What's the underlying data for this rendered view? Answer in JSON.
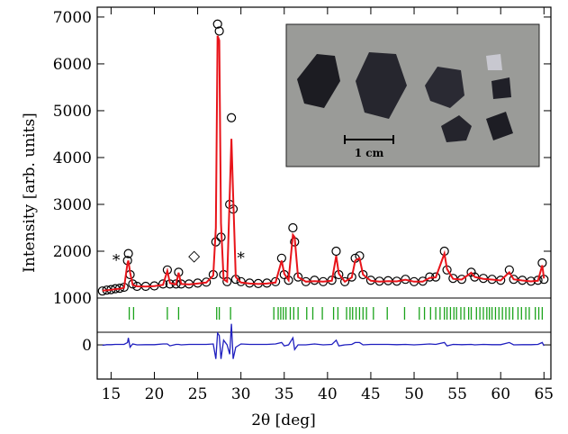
{
  "chart_data": {
    "type": "xrd",
    "xlabel": "2θ [deg]",
    "ylabel": "Intensity [arb. units]",
    "inset_label": "1 cm",
    "xlim": [
      13.4,
      65.8
    ],
    "ylim": [
      -730,
      7210
    ],
    "xticks": [
      15,
      20,
      25,
      30,
      35,
      40,
      45,
      50,
      55,
      60,
      65
    ],
    "yticks": [
      0,
      1000,
      2000,
      3000,
      4000,
      5000,
      6000,
      7000
    ],
    "x": [
      14.0,
      14.5,
      15.0,
      15.5,
      16.0,
      16.5,
      16.9,
      17.0,
      17.2,
      17.5,
      18.0,
      19.0,
      20.0,
      21.0,
      21.5,
      21.8,
      22.5,
      22.8,
      23.1,
      24.0,
      25.0,
      26.0,
      26.8,
      27.1,
      27.3,
      27.5,
      27.7,
      28.0,
      28.4,
      28.7,
      28.9,
      29.1,
      29.4,
      30.0,
      31.0,
      32.0,
      33.0,
      34.0,
      34.7,
      35.0,
      35.5,
      36.0,
      36.2,
      36.6,
      37.5,
      38.5,
      39.5,
      40.5,
      41.0,
      41.3,
      42.0,
      42.8,
      43.2,
      43.7,
      44.1,
      45.0,
      46.0,
      47.0,
      48.0,
      49.0,
      50.0,
      51.0,
      51.8,
      52.5,
      53.5,
      53.8,
      54.5,
      55.5,
      56.6,
      57.0,
      58.0,
      59.0,
      60.0,
      61.0,
      61.5,
      62.5,
      63.5,
      64.3,
      64.8,
      65.0
    ],
    "series": [
      {
        "color": "#000000",
        "values": [
          1150,
          1170,
          1180,
          1200,
          1210,
          1230,
          1800,
          1950,
          1500,
          1300,
          1250,
          1250,
          1260,
          1300,
          1600,
          1300,
          1300,
          1550,
          1300,
          1300,
          1320,
          1340,
          1500,
          2200,
          6850,
          6700,
          2300,
          1500,
          1350,
          3000,
          4850,
          2900,
          1400,
          1350,
          1320,
          1310,
          1320,
          1350,
          1850,
          1500,
          1380,
          2500,
          2200,
          1450,
          1350,
          1380,
          1350,
          1380,
          2000,
          1500,
          1350,
          1450,
          1850,
          1900,
          1500,
          1380,
          1360,
          1370,
          1360,
          1400,
          1350,
          1360,
          1450,
          1450,
          2000,
          1600,
          1420,
          1400,
          1550,
          1450,
          1420,
          1400,
          1380,
          1600,
          1400,
          1380,
          1360,
          1380,
          1750,
          1400
        ]
      },
      {
        "color": "#e8141a",
        "values": [
          1160,
          1165,
          1175,
          1190,
          1200,
          1220,
          1750,
          1800,
          1550,
          1280,
          1250,
          1245,
          1255,
          1280,
          1580,
          1320,
          1290,
          1540,
          1300,
          1290,
          1310,
          1330,
          1480,
          2500,
          6600,
          6500,
          2600,
          1400,
          1350,
          3200,
          4400,
          3200,
          1450,
          1330,
          1310,
          1300,
          1310,
          1330,
          1800,
          1520,
          1380,
          2350,
          2300,
          1450,
          1350,
          1360,
          1350,
          1370,
          1900,
          1520,
          1350,
          1440,
          1800,
          1850,
          1500,
          1370,
          1350,
          1360,
          1355,
          1390,
          1350,
          1350,
          1430,
          1440,
          1950,
          1620,
          1410,
          1395,
          1540,
          1450,
          1410,
          1395,
          1375,
          1550,
          1400,
          1375,
          1355,
          1370,
          1700,
          1420
        ]
      },
      {
        "color": "#1f1fbf",
        "values": [
          -10,
          5,
          5,
          10,
          10,
          10,
          50,
          150,
          -50,
          20,
          0,
          5,
          5,
          20,
          20,
          -20,
          10,
          10,
          0,
          10,
          10,
          10,
          20,
          -300,
          250,
          200,
          -300,
          100,
          0,
          -200,
          450,
          -300,
          -50,
          20,
          10,
          10,
          10,
          20,
          50,
          -20,
          0,
          150,
          -100,
          0,
          0,
          20,
          0,
          10,
          100,
          -20,
          0,
          10,
          50,
          50,
          0,
          10,
          10,
          10,
          5,
          10,
          0,
          10,
          20,
          10,
          50,
          -20,
          10,
          5,
          10,
          0,
          10,
          5,
          5,
          50,
          0,
          5,
          5,
          10,
          50,
          -20
        ]
      }
    ],
    "reflections": {
      "color": "#1aa31a",
      "x": [
        17.1,
        17.6,
        21.5,
        22.8,
        27.2,
        27.5,
        28.8,
        33.8,
        34.3,
        34.6,
        34.9,
        35.2,
        35.7,
        36.1,
        36.6,
        37.6,
        38.3,
        39.4,
        40.7,
        41.2,
        42.2,
        42.6,
        42.9,
        43.3,
        43.7,
        44.1,
        44.5,
        45.3,
        46.9,
        48.9,
        50.6,
        51.2,
        51.9,
        52.5,
        53.0,
        53.5,
        53.8,
        54.2,
        54.6,
        54.9,
        55.4,
        55.8,
        56.3,
        56.6,
        57.2,
        57.6,
        58.0,
        58.4,
        58.7,
        59.0,
        59.4,
        59.8,
        60.2,
        60.6,
        61.0,
        61.4,
        62.0,
        62.4,
        62.9,
        63.3,
        64.0,
        64.4,
        64.8
      ]
    },
    "annotations": [
      {
        "text": "*",
        "x": 15.6,
        "y": 1700
      },
      {
        "text": "◇",
        "x": 24.6,
        "y": 1800
      },
      {
        "text": "*",
        "x": 30.0,
        "y": 1750
      }
    ]
  }
}
